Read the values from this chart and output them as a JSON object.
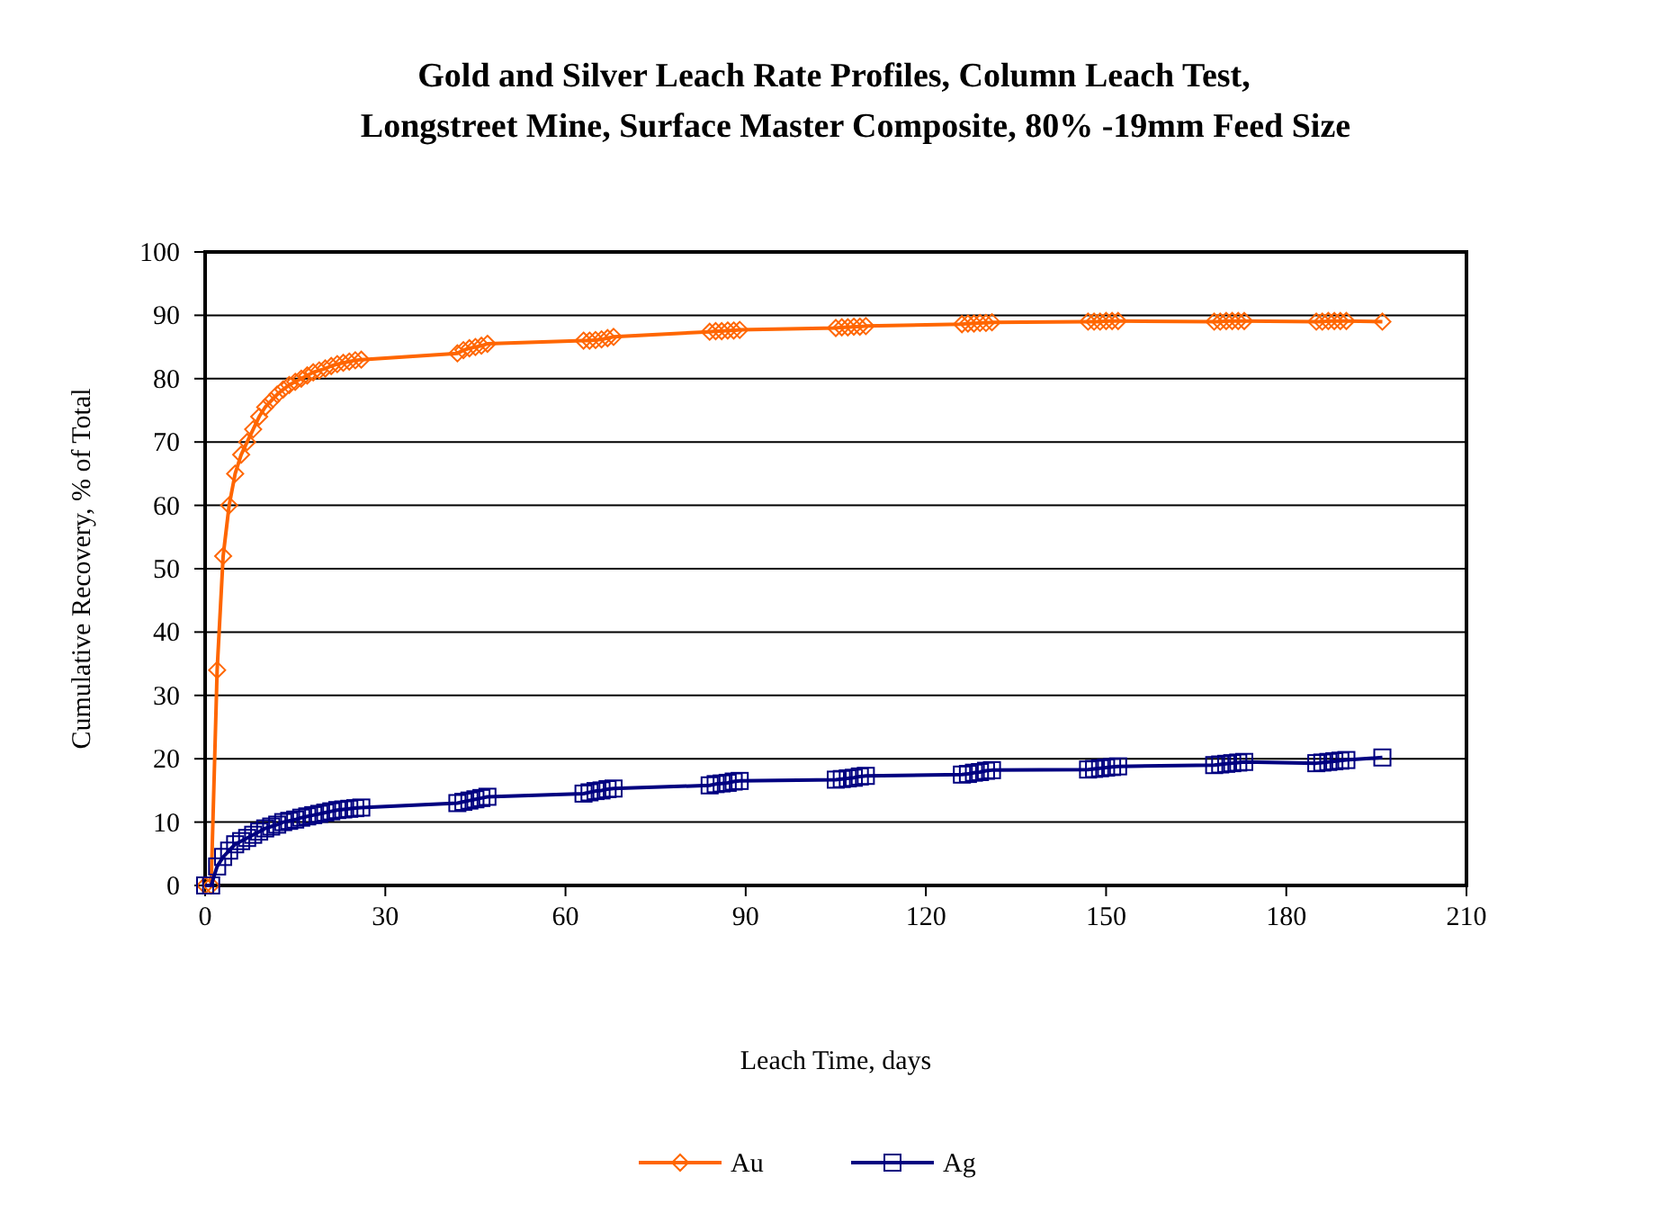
{
  "chart_data": {
    "type": "line",
    "title": "Gold and Silver Leach Rate Profiles,  Column Leach Test,\nLongstreet Mine, Surface Master Composite, 80% -19mm Feed Size",
    "xlabel": "Leach Time, days",
    "ylabel": "Cumulative Recovery, % of Total",
    "x": [
      0,
      1,
      2,
      3,
      4,
      5,
      6,
      7,
      8,
      9,
      10,
      11,
      12,
      13,
      14,
      15,
      16,
      17,
      18,
      19,
      20,
      21,
      22,
      23,
      24,
      25,
      26,
      42,
      43,
      44,
      45,
      46,
      47,
      63,
      64,
      65,
      66,
      67,
      68,
      84,
      85,
      86,
      87,
      88,
      89,
      105,
      106,
      107,
      108,
      109,
      110,
      126,
      127,
      128,
      129,
      130,
      131,
      147,
      148,
      149,
      150,
      151,
      152,
      168,
      169,
      170,
      171,
      172,
      173,
      185,
      186,
      187,
      188,
      189,
      190,
      196
    ],
    "series": [
      {
        "name": "Au",
        "color": "#ff6600",
        "marker": "diamond",
        "values": [
          0,
          0,
          34,
          52,
          60,
          65,
          68,
          70,
          72,
          74,
          75.5,
          76.5,
          77.5,
          78.3,
          79,
          79.5,
          80,
          80.5,
          81,
          81.3,
          81.6,
          82,
          82.3,
          82.5,
          82.7,
          82.9,
          83,
          84,
          84.5,
          84.8,
          85,
          85.2,
          85.5,
          86,
          86,
          86.1,
          86.2,
          86.4,
          86.6,
          87.4,
          87.5,
          87.5,
          87.6,
          87.6,
          87.7,
          88,
          88.1,
          88.1,
          88.2,
          88.2,
          88.3,
          88.6,
          88.7,
          88.7,
          88.8,
          88.8,
          88.9,
          89,
          89,
          89,
          89.1,
          89.1,
          89.1,
          89,
          89,
          89.1,
          89.1,
          89.1,
          89.1,
          89,
          89,
          89.1,
          89.1,
          89.1,
          89.1,
          89
        ]
      },
      {
        "name": "Ag",
        "color": "#000080",
        "marker": "square",
        "values": [
          0,
          0,
          3,
          4.5,
          5.5,
          6.5,
          7,
          7.5,
          8,
          8.5,
          9,
          9.3,
          9.6,
          10,
          10.2,
          10.4,
          10.7,
          10.9,
          11.1,
          11.3,
          11.5,
          11.7,
          11.9,
          12,
          12.1,
          12.2,
          12.3,
          13,
          13.2,
          13.4,
          13.6,
          13.8,
          14,
          14.5,
          14.7,
          14.9,
          15,
          15.2,
          15.3,
          15.8,
          16,
          16.1,
          16.2,
          16.4,
          16.5,
          16.7,
          16.8,
          16.9,
          17,
          17.2,
          17.3,
          17.5,
          17.6,
          17.8,
          17.9,
          18.1,
          18.2,
          18.3,
          18.4,
          18.5,
          18.6,
          18.7,
          18.8,
          19,
          19.1,
          19.2,
          19.3,
          19.4,
          19.5,
          19.3,
          19.4,
          19.5,
          19.6,
          19.7,
          19.8,
          20.2
        ]
      }
    ],
    "xlim": [
      0,
      210
    ],
    "xticks": [
      0,
      30,
      60,
      90,
      120,
      150,
      180,
      210
    ],
    "ylim": [
      0,
      100
    ],
    "yticks": [
      0,
      10,
      20,
      30,
      40,
      50,
      60,
      70,
      80,
      90,
      100
    ],
    "grid": "y",
    "legend": "bottom",
    "line_style": "solid"
  }
}
